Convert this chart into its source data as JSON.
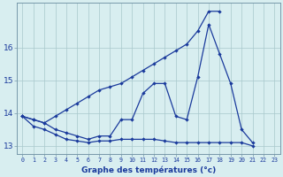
{
  "xlabel": "Graphe des températures (°c)",
  "hours": [
    0,
    1,
    2,
    3,
    4,
    5,
    6,
    7,
    8,
    9,
    10,
    11,
    12,
    13,
    14,
    15,
    16,
    17,
    18,
    19,
    20,
    21,
    22,
    23
  ],
  "temp_actual": [
    13.9,
    13.8,
    13.7,
    13.5,
    13.4,
    13.3,
    13.2,
    13.3,
    13.3,
    13.8,
    13.8,
    14.6,
    14.9,
    14.9,
    13.9,
    13.8,
    15.1,
    16.7,
    15.8,
    14.9,
    13.5,
    13.1,
    null,
    null
  ],
  "temp_max": [
    13.9,
    13.8,
    13.7,
    13.9,
    14.1,
    14.3,
    14.5,
    14.7,
    14.8,
    14.9,
    15.1,
    15.3,
    15.5,
    15.7,
    15.9,
    16.1,
    16.5,
    17.1,
    17.1,
    null,
    null,
    null,
    null,
    null
  ],
  "temp_min": [
    13.9,
    13.6,
    13.5,
    13.35,
    13.2,
    13.15,
    13.1,
    13.15,
    13.15,
    13.2,
    13.2,
    13.2,
    13.2,
    13.15,
    13.1,
    13.1,
    13.1,
    13.1,
    13.1,
    13.1,
    13.1,
    13.0,
    null,
    null
  ],
  "ylim": [
    12.75,
    17.35
  ],
  "yticks": [
    13,
    14,
    15,
    16
  ],
  "xlim": [
    -0.5,
    23.5
  ],
  "bg_color": "#d8eef0",
  "line_color": "#1a3a9c",
  "grid_color": "#a8c8cc",
  "spine_color": "#7799aa",
  "xlabel_fontsize": 6.5,
  "ytick_fontsize": 6.5,
  "xtick_fontsize": 4.8,
  "linewidth": 0.9,
  "markersize": 2.2
}
